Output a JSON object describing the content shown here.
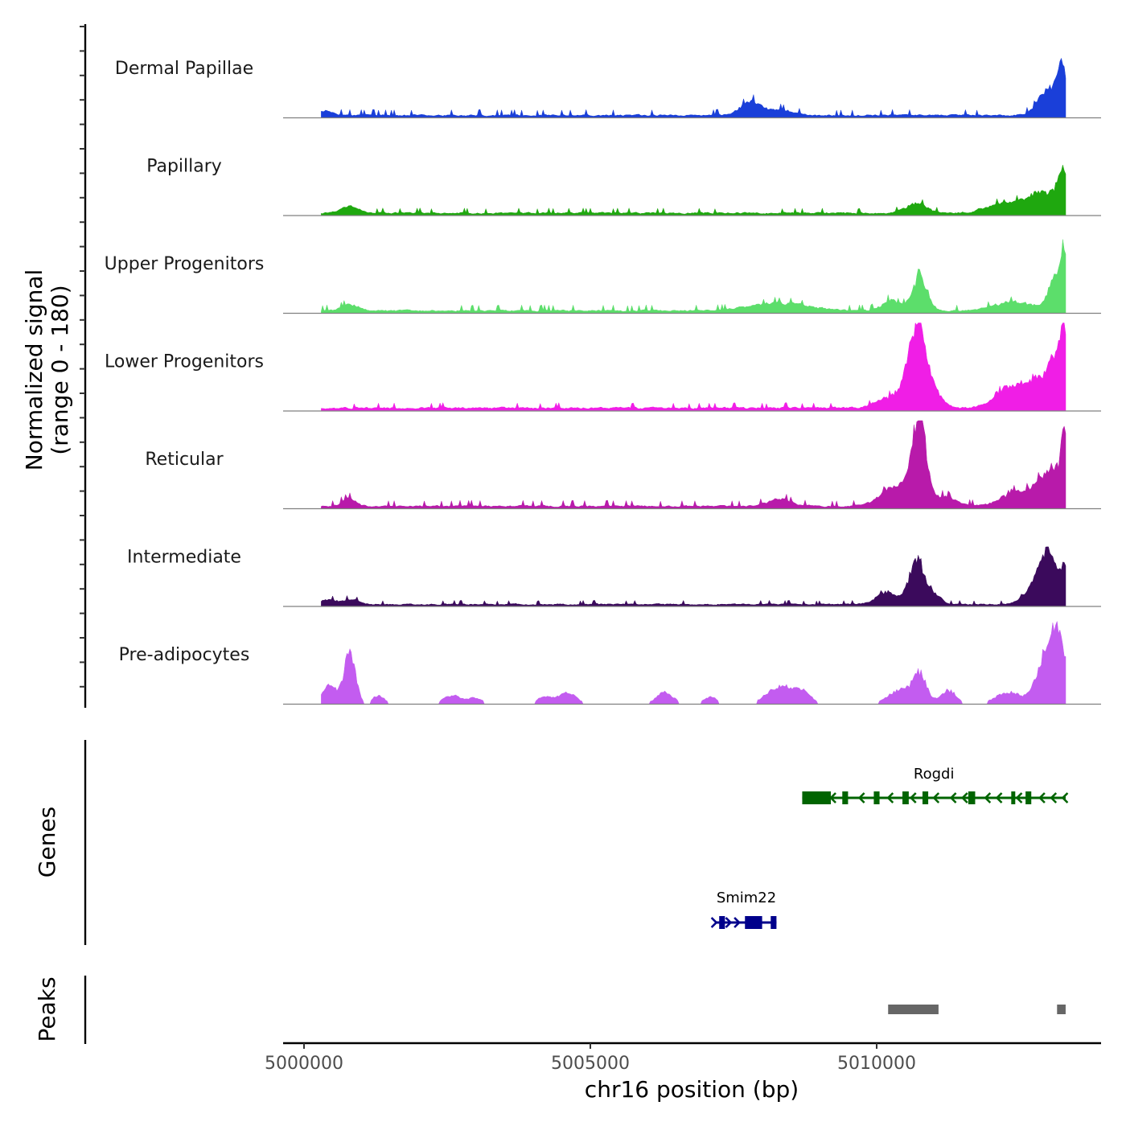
{
  "chart_data": {
    "type": "area",
    "chromosome": "chr16",
    "xlabel": "chr16 position (bp)",
    "ylabel_line1": "Normalized signal",
    "ylabel_line2": "(range 0 - 180)",
    "signal_range": [
      0,
      180
    ],
    "xlim": [
      4999300,
      5013600
    ],
    "x_ticks": [
      5000000,
      5005000,
      5010000
    ],
    "x_tick_labels": [
      "5000000",
      "5005000",
      "5010000"
    ],
    "coverage_start": 5000300,
    "coverage_end": 5013300,
    "series": [
      {
        "name": "Dermal Papillae",
        "color": "#1a3fd9",
        "base": 6,
        "noise": 6,
        "peaks": [
          [
            5000300,
            180,
            10
          ],
          [
            5007800,
            180,
            28
          ],
          [
            5008300,
            200,
            12
          ],
          [
            5013000,
            180,
            52
          ],
          [
            5013250,
            90,
            85
          ]
        ]
      },
      {
        "name": "Papillary",
        "color": "#1fa80f",
        "base": 6,
        "noise": 5,
        "peaks": [
          [
            5000800,
            150,
            14
          ],
          [
            5010700,
            180,
            20
          ],
          [
            5012200,
            300,
            18
          ],
          [
            5012900,
            300,
            42
          ],
          [
            5013250,
            90,
            70
          ]
        ]
      },
      {
        "name": "Upper Progenitors",
        "color": "#5cde6b",
        "base": 6,
        "noise": 6,
        "peaks": [
          [
            5000800,
            150,
            12
          ],
          [
            5008300,
            500,
            16
          ],
          [
            5010250,
            150,
            22
          ],
          [
            5010750,
            130,
            68
          ],
          [
            5012400,
            350,
            18
          ],
          [
            5013150,
            130,
            72
          ],
          [
            5013280,
            60,
            95
          ]
        ]
      },
      {
        "name": "Lower Progenitors",
        "color": "#f01ee6",
        "base": 7,
        "noise": 5,
        "peaks": [
          [
            5010300,
            250,
            24
          ],
          [
            5010700,
            150,
            165
          ],
          [
            5011000,
            150,
            30
          ],
          [
            5012300,
            250,
            36
          ],
          [
            5012800,
            250,
            50
          ],
          [
            5013150,
            150,
            88
          ],
          [
            5013270,
            60,
            95
          ]
        ]
      },
      {
        "name": "Reticular",
        "color": "#b81aaa",
        "base": 6,
        "noise": 6,
        "peaks": [
          [
            5000800,
            120,
            16
          ],
          [
            5008300,
            200,
            15
          ],
          [
            5010200,
            200,
            28
          ],
          [
            5010600,
            220,
            40
          ],
          [
            5010750,
            110,
            160
          ],
          [
            5011200,
            200,
            18
          ],
          [
            5012500,
            300,
            30
          ],
          [
            5013100,
            220,
            78
          ],
          [
            5013280,
            50,
            110
          ]
        ]
      },
      {
        "name": "Intermediate",
        "color": "#3b0a5c",
        "base": 5,
        "noise": 4,
        "peaks": [
          [
            5000400,
            120,
            10
          ],
          [
            5000800,
            150,
            10
          ],
          [
            5010200,
            200,
            24
          ],
          [
            5010700,
            120,
            95
          ],
          [
            5011000,
            120,
            20
          ],
          [
            5012800,
            200,
            36
          ],
          [
            5013000,
            150,
            86
          ],
          [
            5013270,
            60,
            60
          ]
        ]
      },
      {
        "name": "Pre-adipocytes",
        "color": "#c35cf0",
        "base": 0,
        "noise": 0,
        "peaks": [
          [
            5000450,
            120,
            38
          ],
          [
            5000800,
            100,
            105
          ],
          [
            5001300,
            100,
            18
          ],
          [
            5002600,
            160,
            18
          ],
          [
            5003000,
            120,
            12
          ],
          [
            5004200,
            140,
            14
          ],
          [
            5004600,
            160,
            22
          ],
          [
            5006300,
            150,
            24
          ],
          [
            5007100,
            120,
            14
          ],
          [
            5008300,
            220,
            36
          ],
          [
            5008700,
            150,
            24
          ],
          [
            5010400,
            200,
            28
          ],
          [
            5010750,
            120,
            60
          ],
          [
            5011250,
            140,
            28
          ],
          [
            5012300,
            220,
            24
          ],
          [
            5013000,
            180,
            110
          ],
          [
            5013200,
            120,
            90
          ]
        ]
      }
    ],
    "genes_track_label": "Genes",
    "genes": [
      {
        "name": "Rogdi",
        "strand": "-",
        "color": "#006400",
        "start": 5008700,
        "end": 5013300,
        "exons": [
          [
            5008700,
            5009200
          ],
          [
            5009400,
            5009500
          ],
          [
            5009950,
            5010050
          ],
          [
            5010450,
            5010560
          ],
          [
            5010800,
            5010900
          ],
          [
            5011600,
            5011720
          ],
          [
            5012350,
            5012420
          ],
          [
            5012600,
            5012700
          ]
        ],
        "arrows": [
          5009200,
          5009700,
          5010200,
          5010600,
          5011000,
          5011300,
          5011500,
          5011900,
          5012100,
          5012450,
          5012850,
          5013050,
          5013250
        ]
      },
      {
        "name": "Smim22",
        "strand": "+",
        "color": "#00008b",
        "start": 5007200,
        "end": 5008250,
        "exons": [
          [
            5007250,
            5007350
          ],
          [
            5007700,
            5008000
          ],
          [
            5008150,
            5008250
          ]
        ],
        "arrows": [
          5007200,
          5007450,
          5007600
        ]
      }
    ],
    "peaks_track_label": "Peaks",
    "peak_regions": [
      [
        5010200,
        5011080
      ],
      [
        5013150,
        5013300
      ]
    ]
  }
}
